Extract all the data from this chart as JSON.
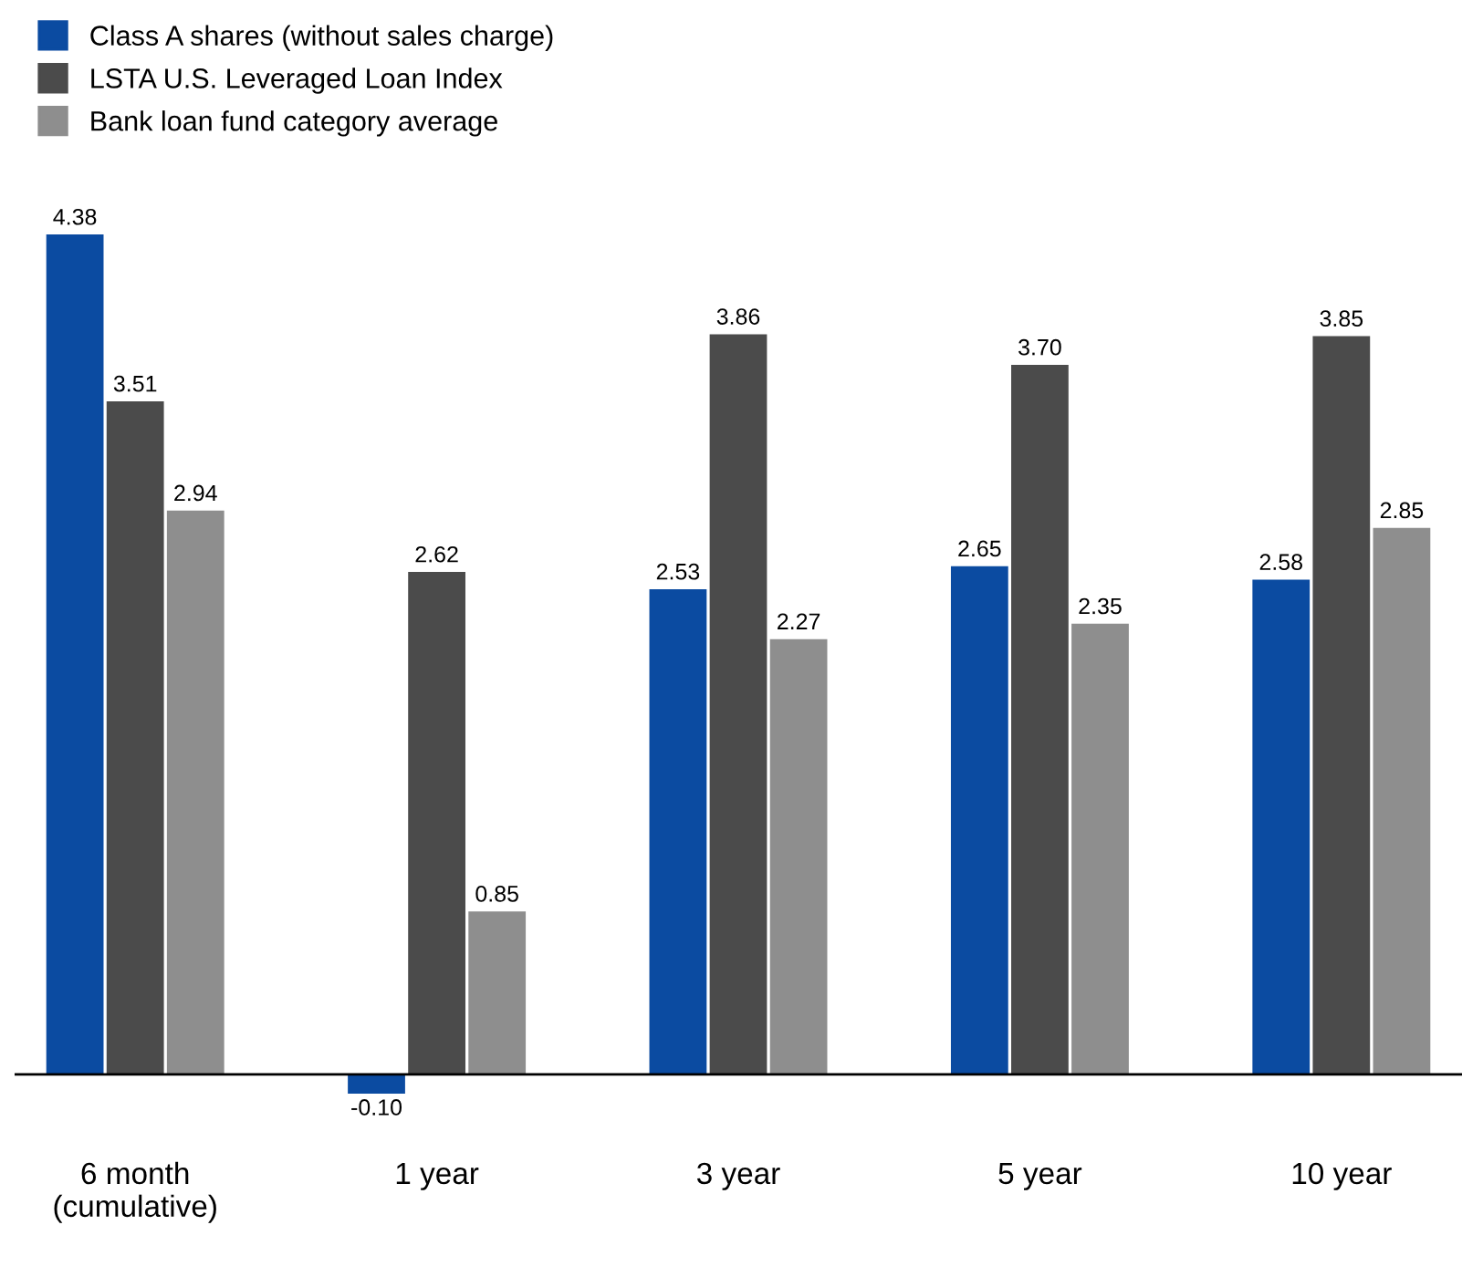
{
  "chart_data": {
    "type": "bar",
    "categories": [
      "6 month\n(cumulative)",
      "1 year",
      "3 year",
      "5 year",
      "10 year"
    ],
    "series": [
      {
        "name": "Class A shares (without sales charge)",
        "color": "#0b4ba1",
        "values": [
          4.38,
          -0.1,
          2.53,
          2.65,
          2.58
        ],
        "value_labels": [
          "4.38",
          "-0.10",
          "2.53",
          "2.65",
          "2.58"
        ]
      },
      {
        "name": "LSTA U.S. Leveraged Loan Index",
        "color": "#4b4b4b",
        "values": [
          3.51,
          2.62,
          3.86,
          3.7,
          3.85
        ],
        "value_labels": [
          "3.51",
          "2.62",
          "3.86",
          "3.70",
          "3.85"
        ]
      },
      {
        "name": "Bank loan fund category average",
        "color": "#8e8e8e",
        "values": [
          2.94,
          0.85,
          2.27,
          2.35,
          2.85
        ],
        "value_labels": [
          "2.94",
          "0.85",
          "2.27",
          "2.35",
          "2.85"
        ]
      }
    ],
    "legend": "top left",
    "grid": false
  }
}
